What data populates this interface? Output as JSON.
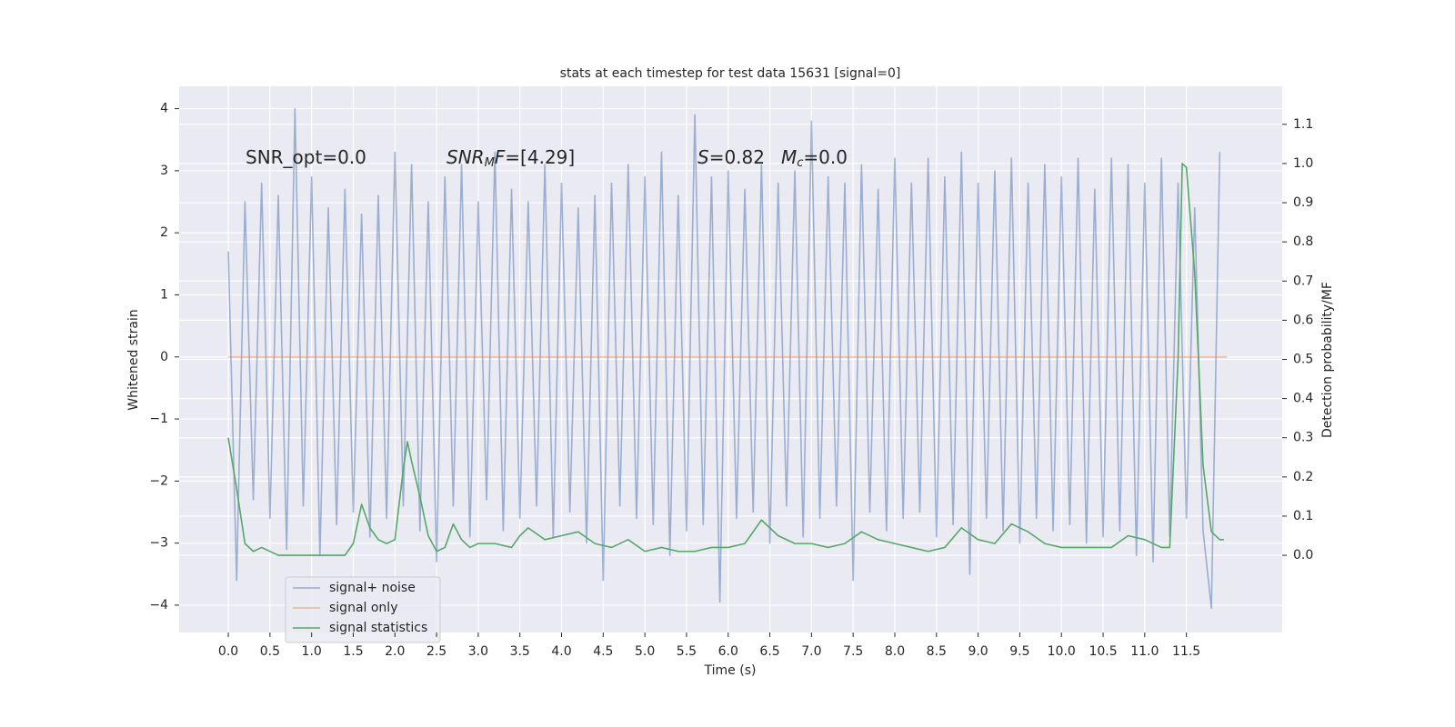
{
  "chart_data": {
    "type": "line",
    "title": "stats at each timestep for test data 15631 [signal=0]",
    "xlabel": "Time (s)",
    "ylabel": "Whitened strain",
    "y2label": "Detection probability/MF",
    "annotations": [
      [
        "SNR_opt=0.0"
      ],
      [
        "SNR",
        "M",
        "F",
        "=[4.29]"
      ],
      [
        "S",
        "=0.82"
      ],
      [
        "M",
        "c",
        "=0.0"
      ]
    ],
    "xlim": [
      -0.59,
      12.65
    ],
    "ylim": [
      -4.44,
      4.36
    ],
    "y2lim": [
      -0.197,
      1.197
    ],
    "xticks": [
      {
        "value": 0,
        "label": "0.0"
      },
      {
        "value": 0.5,
        "label": "0.5"
      },
      {
        "value": 1,
        "label": "1.0"
      },
      {
        "value": 1.5,
        "label": "1.5"
      },
      {
        "value": 2,
        "label": "2.0"
      },
      {
        "value": 2.5,
        "label": "2.5"
      },
      {
        "value": 3,
        "label": "3.0"
      },
      {
        "value": 3.5,
        "label": "3.5"
      },
      {
        "value": 4,
        "label": "4.0"
      },
      {
        "value": 4.5,
        "label": "4.5"
      },
      {
        "value": 5,
        "label": "5.0"
      },
      {
        "value": 5.5,
        "label": "5.5"
      },
      {
        "value": 6,
        "label": "6.0"
      },
      {
        "value": 6.5,
        "label": "6.5"
      },
      {
        "value": 7,
        "label": "7.0"
      },
      {
        "value": 7.5,
        "label": "7.5"
      },
      {
        "value": 8,
        "label": "8.0"
      },
      {
        "value": 8.5,
        "label": "8.5"
      },
      {
        "value": 9,
        "label": "9.0"
      },
      {
        "value": 9.5,
        "label": "9.5"
      },
      {
        "value": 10,
        "label": "10.0"
      },
      {
        "value": 10.5,
        "label": "10.5"
      },
      {
        "value": 11,
        "label": "11.0"
      },
      {
        "value": 11.5,
        "label": "11.5"
      }
    ],
    "yticks": [
      {
        "value": -4,
        "label": "−4"
      },
      {
        "value": -3,
        "label": "−3"
      },
      {
        "value": -2,
        "label": "−2"
      },
      {
        "value": -1,
        "label": "−1"
      },
      0,
      1,
      2,
      3,
      4
    ],
    "y2ticks": [
      {
        "value": 0,
        "label": "0.0"
      },
      {
        "value": 0.1,
        "label": "0.1"
      },
      {
        "value": 0.2,
        "label": "0.2"
      },
      {
        "value": 0.3,
        "label": "0.3"
      },
      {
        "value": 0.4,
        "label": "0.4"
      },
      {
        "value": 0.5,
        "label": "0.5"
      },
      {
        "value": 0.6,
        "label": "0.6"
      },
      {
        "value": 0.7,
        "label": "0.7"
      },
      {
        "value": 0.8,
        "label": "0.8"
      },
      {
        "value": 0.9,
        "label": "0.9"
      },
      {
        "value": 1,
        "label": "1.0"
      },
      {
        "value": 1.1,
        "label": "1.1"
      }
    ],
    "grid": true,
    "legend": "lower left",
    "series": [
      {
        "name": "signal+ noise",
        "color": "#4c72b0",
        "opacity": 0.5,
        "x": [
          0,
          0.1,
          0.2,
          0.3,
          0.4,
          0.5,
          0.6,
          0.7,
          0.8,
          0.9,
          1,
          1.1,
          1.2,
          1.3,
          1.4,
          1.5,
          1.6,
          1.7,
          1.8,
          1.9,
          2,
          2.1,
          2.2,
          2.3,
          2.4,
          2.5,
          2.6,
          2.7,
          2.8,
          2.9,
          3,
          3.1,
          3.2,
          3.3,
          3.4,
          3.5,
          3.6,
          3.7,
          3.8,
          3.9,
          4,
          4.1,
          4.2,
          4.3,
          4.4,
          4.5,
          4.6,
          4.7,
          4.8,
          4.9,
          5,
          5.1,
          5.2,
          5.3,
          5.4,
          5.5,
          5.6,
          5.7,
          5.8,
          5.9,
          6,
          6.1,
          6.2,
          6.3,
          6.4,
          6.5,
          6.6,
          6.7,
          6.8,
          6.9,
          7,
          7.1,
          7.2,
          7.3,
          7.4,
          7.5,
          7.6,
          7.7,
          7.8,
          7.9,
          8,
          8.1,
          8.2,
          8.3,
          8.4,
          8.5,
          8.6,
          8.7,
          8.8,
          8.9,
          9,
          9.1,
          9.2,
          9.3,
          9.4,
          9.5,
          9.6,
          9.7,
          9.8,
          9.9,
          10,
          10.1,
          10.2,
          10.3,
          10.4,
          10.5,
          10.6,
          10.7,
          10.8,
          10.9,
          11,
          11.1,
          11.2,
          11.3,
          11.4,
          11.5,
          11.6,
          11.7,
          11.8,
          11.9
        ],
        "values": [
          1.7,
          -3.6,
          2.5,
          -2.3,
          2.8,
          -2.6,
          2.6,
          -3.1,
          4.0,
          -2.4,
          2.9,
          -3.2,
          2.4,
          -2.7,
          2.7,
          -2.5,
          2.3,
          -2.9,
          2.6,
          -2.6,
          3.3,
          -2.4,
          3.1,
          -2.8,
          2.5,
          -3.3,
          2.9,
          -2.4,
          3.1,
          -2.9,
          2.5,
          -2.3,
          3.3,
          -2.8,
          2.7,
          -2.6,
          2.5,
          -2.4,
          3.1,
          -2.9,
          2.8,
          -2.5,
          2.4,
          -3.0,
          2.6,
          -3.6,
          2.8,
          -2.4,
          3.1,
          -2.6,
          2.9,
          -2.7,
          3.3,
          -3.2,
          2.6,
          -2.8,
          3.9,
          -2.7,
          2.9,
          -3.95,
          3.0,
          -2.6,
          2.7,
          -2.5,
          3.1,
          -3.0,
          2.8,
          -2.4,
          3.0,
          -2.9,
          3.8,
          -2.6,
          2.9,
          -2.4,
          2.8,
          -3.6,
          3.1,
          -2.5,
          2.7,
          -2.8,
          3.2,
          -2.6,
          2.8,
          -2.5,
          3.2,
          -2.9,
          2.9,
          -2.7,
          3.3,
          -3.5,
          2.8,
          -2.6,
          3.0,
          -2.8,
          3.2,
          -3.0,
          2.8,
          -2.6,
          3.1,
          -2.8,
          2.9,
          -2.7,
          3.2,
          -3.0,
          2.7,
          -2.9,
          3.2,
          -2.8,
          3.1,
          -3.2,
          2.8,
          -3.3,
          3.2,
          -2.9,
          2.8,
          -2.6,
          2.4,
          -2.8,
          -4.05,
          3.3
        ]
      },
      {
        "name": "signal only",
        "color": "#dd8452",
        "opacity": 0.5,
        "x": [
          0,
          11.99
        ],
        "values": [
          0,
          0
        ]
      },
      {
        "name": "signal statistics",
        "color": "#55a868",
        "opacity": 1,
        "axis": "y2",
        "x": [
          0,
          0.1,
          0.2,
          0.3,
          0.4,
          0.6,
          0.8,
          1,
          1.2,
          1.4,
          1.5,
          1.6,
          1.7,
          1.8,
          1.9,
          2,
          2.1,
          2.15,
          2.2,
          2.3,
          2.4,
          2.5,
          2.6,
          2.7,
          2.8,
          2.9,
          3,
          3.2,
          3.4,
          3.5,
          3.6,
          3.8,
          4,
          4.2,
          4.4,
          4.6,
          4.8,
          5,
          5.2,
          5.4,
          5.6,
          5.8,
          6,
          6.2,
          6.4,
          6.6,
          6.8,
          7,
          7.2,
          7.4,
          7.6,
          7.8,
          8,
          8.2,
          8.4,
          8.6,
          8.8,
          9,
          9.2,
          9.4,
          9.6,
          9.8,
          10,
          10.4,
          10.6,
          10.8,
          11,
          11.2,
          11.3,
          11.4,
          11.45,
          11.5,
          11.6,
          11.7,
          11.8,
          11.9,
          11.95
        ],
        "values": [
          0.3,
          0.17,
          0.03,
          0.01,
          0.02,
          0,
          0,
          0,
          0,
          0,
          0.03,
          0.13,
          0.07,
          0.04,
          0.03,
          0.04,
          0.22,
          0.29,
          0.24,
          0.15,
          0.05,
          0.01,
          0.02,
          0.08,
          0.04,
          0.02,
          0.03,
          0.03,
          0.02,
          0.05,
          0.07,
          0.04,
          0.05,
          0.06,
          0.03,
          0.02,
          0.04,
          0.01,
          0.02,
          0.01,
          0.01,
          0.02,
          0.02,
          0.03,
          0.09,
          0.05,
          0.03,
          0.03,
          0.02,
          0.03,
          0.06,
          0.04,
          0.03,
          0.02,
          0.01,
          0.02,
          0.07,
          0.04,
          0.03,
          0.08,
          0.06,
          0.03,
          0.02,
          0.02,
          0.02,
          0.05,
          0.04,
          0.02,
          0.02,
          0.5,
          1.0,
          0.99,
          0.72,
          0.23,
          0.06,
          0.04,
          0.04
        ]
      }
    ]
  }
}
